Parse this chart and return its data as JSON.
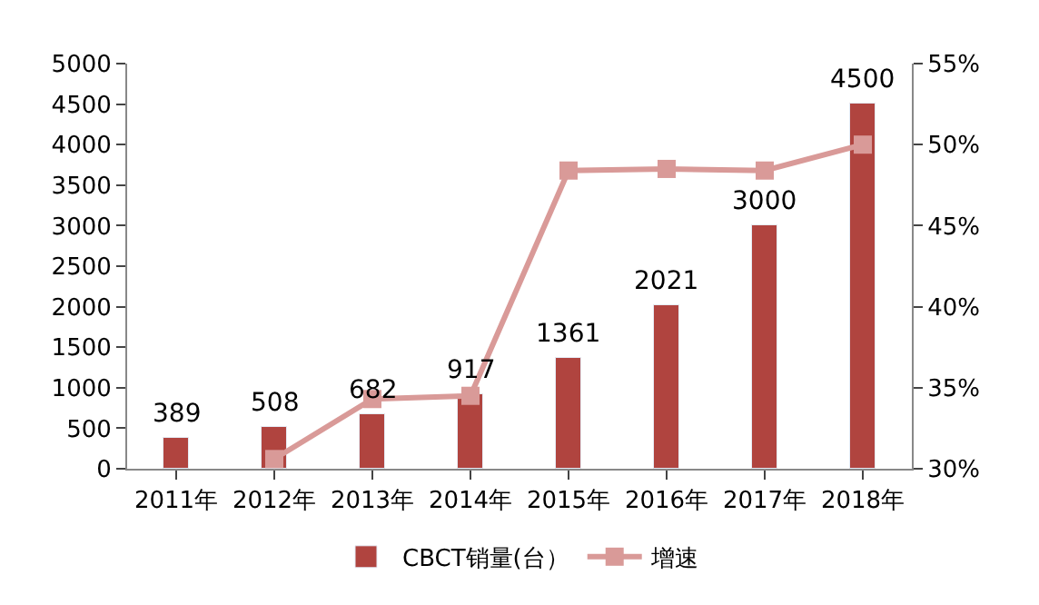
{
  "chart_data": {
    "type": "bar",
    "categories": [
      "2011年",
      "2012年",
      "2013年",
      "2014年",
      "2015年",
      "2016年",
      "2017年",
      "2018年"
    ],
    "series": [
      {
        "name": "CBCT销量(台）",
        "color": "#b0443f",
        "values": [
          389,
          508,
          682,
          917,
          1361,
          2021,
          3000,
          4500
        ],
        "value_labels": [
          "389",
          "508",
          "682",
          "917",
          "1361",
          "2021",
          "3000",
          "4500"
        ]
      },
      {
        "name": "增速",
        "type": "line",
        "axis": "y2",
        "color": "#d99a98",
        "marker": "square",
        "values": [
          null,
          30.6,
          34.3,
          34.5,
          48.4,
          48.5,
          48.4,
          50.0
        ]
      }
    ],
    "ylim": [
      0,
      5000
    ],
    "yticks": [
      0,
      500,
      1000,
      1500,
      2000,
      2500,
      3000,
      3500,
      4000,
      4500,
      5000
    ],
    "y2lim": [
      30,
      55
    ],
    "y2ticks": [
      {
        "value": 30,
        "label": "30%"
      },
      {
        "value": 35,
        "label": "35%"
      },
      {
        "value": 40,
        "label": "40%"
      },
      {
        "value": 45,
        "label": "45%"
      },
      {
        "value": 50,
        "label": "50%"
      },
      {
        "value": 55,
        "label": "55%"
      }
    ],
    "grid": false,
    "legend": "bottom"
  }
}
